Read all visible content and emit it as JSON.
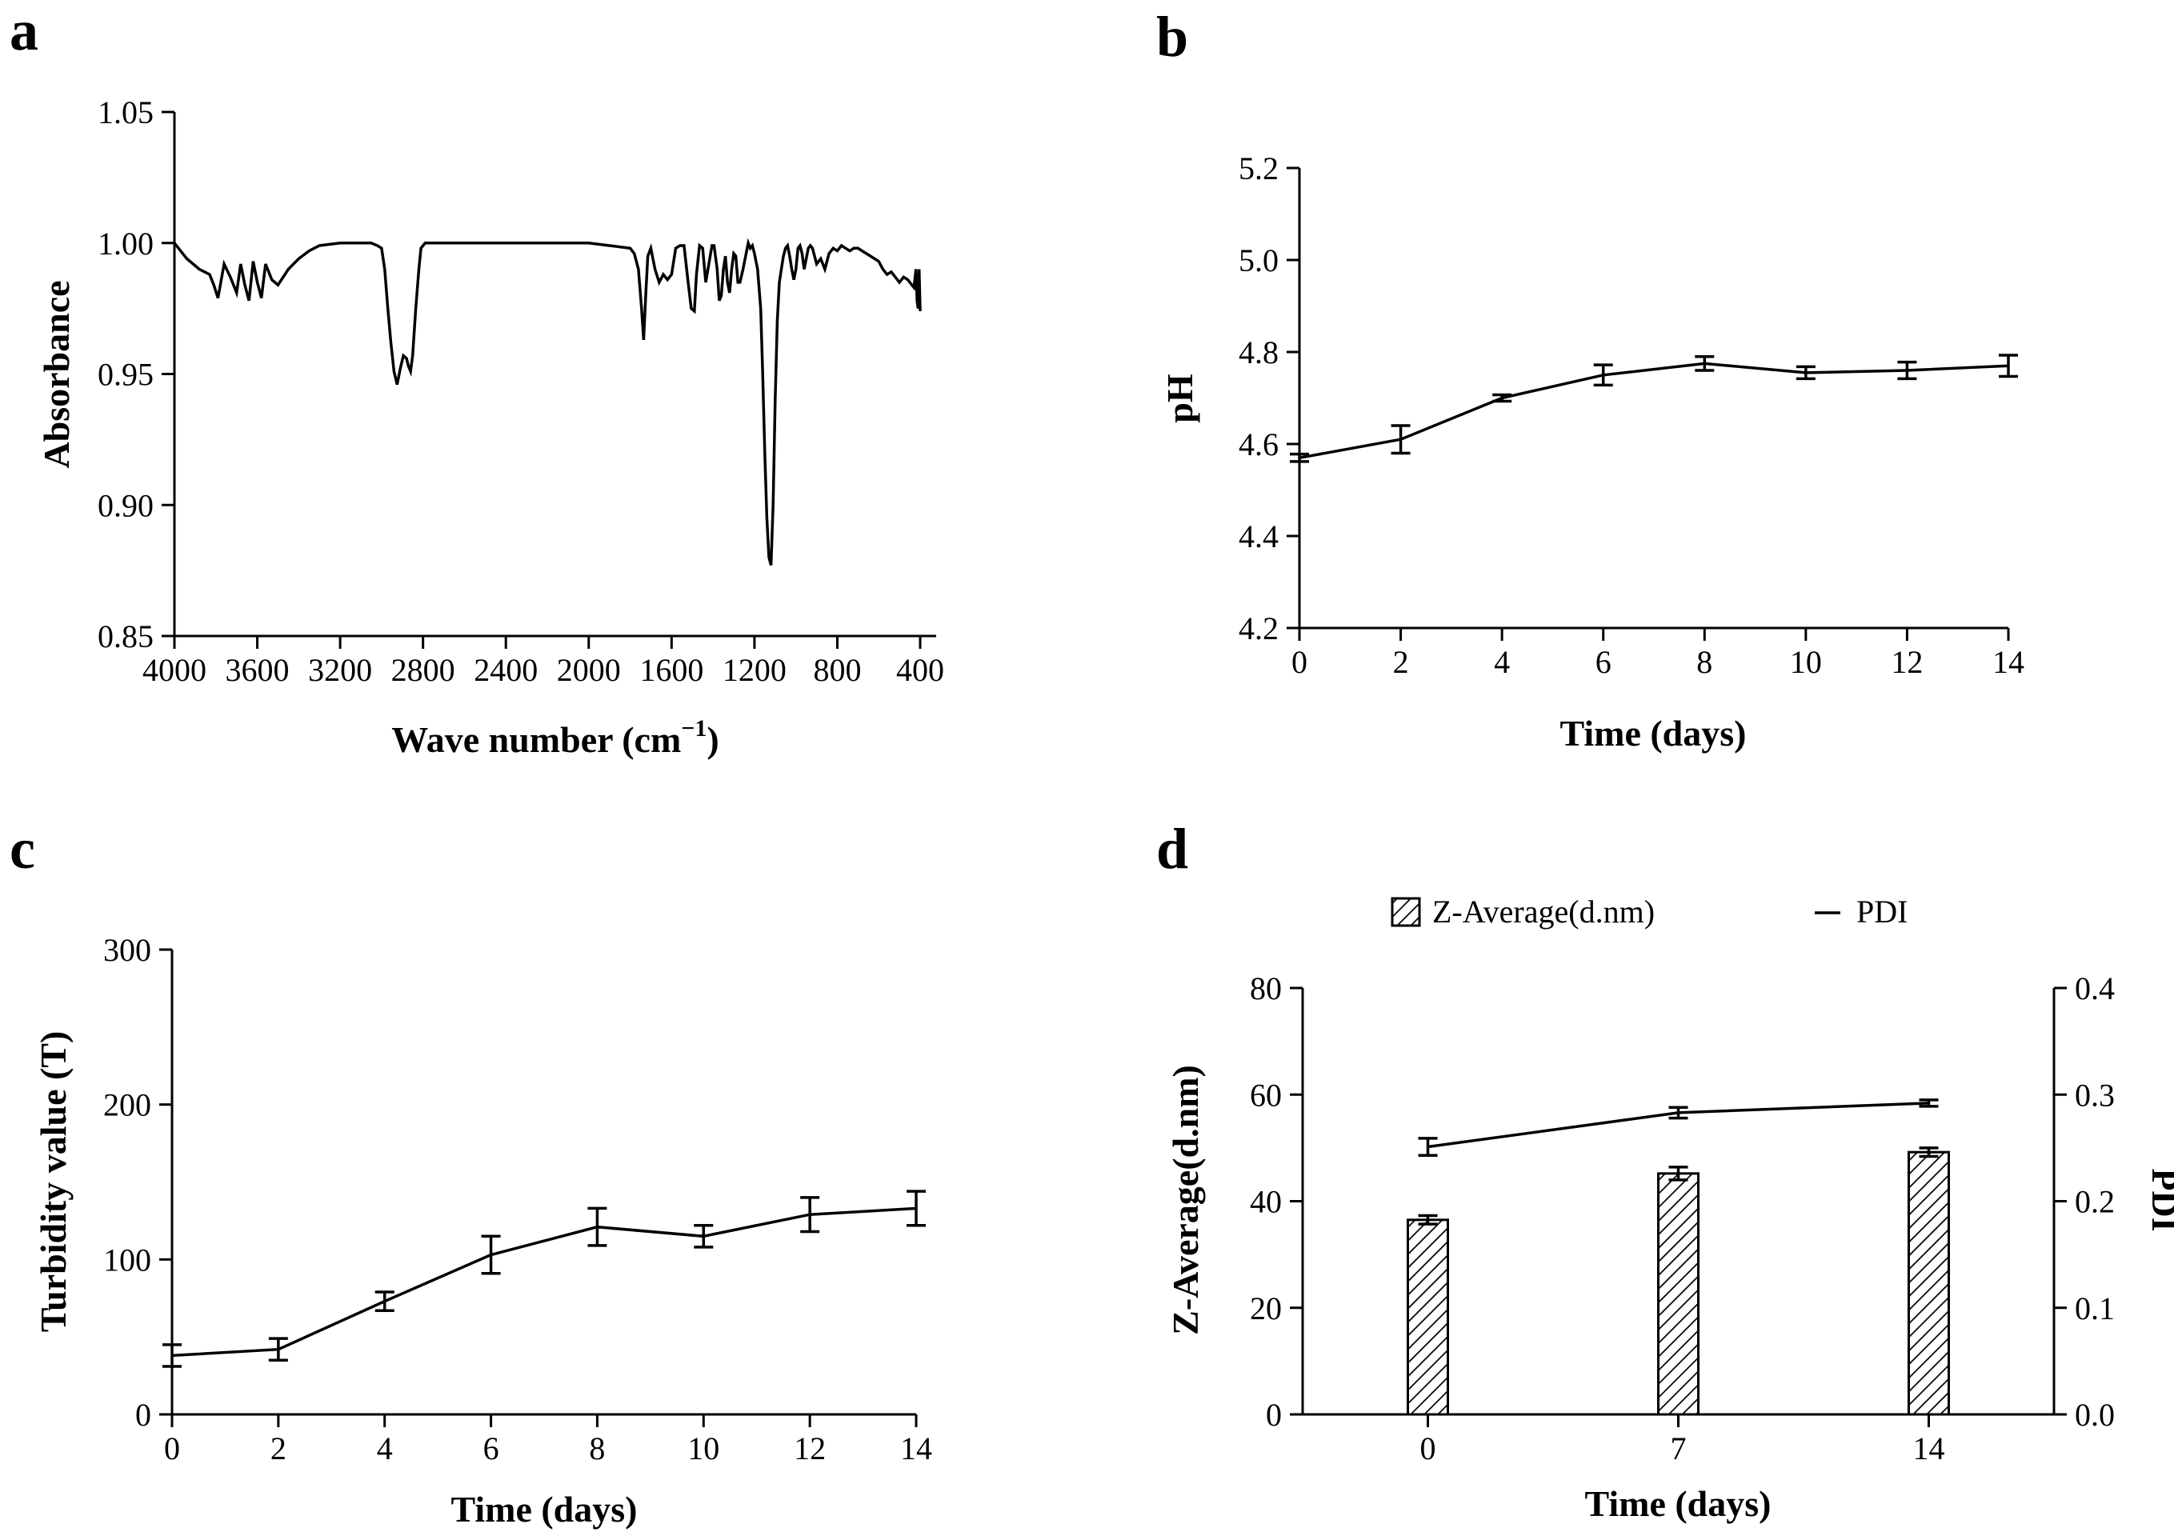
{
  "chart_data": [
    {
      "id": "a",
      "type": "line",
      "panel_label": "a",
      "xlabel": "Wave number (cm",
      "xlabel_sup": "−1",
      "xlabel_close": ")",
      "ylabel": "Absorbance",
      "xlim": [
        4000,
        400
      ],
      "ylim": [
        0.85,
        1.05
      ],
      "xticks": [
        4000,
        3600,
        3200,
        2800,
        2400,
        2000,
        1600,
        1200,
        800,
        400
      ],
      "yticks": [
        "0.85",
        "0.90",
        "0.95",
        "1.00",
        "1.05"
      ],
      "series": [
        {
          "x": [
            4000,
            3940,
            3880,
            3830,
            3810,
            3790,
            3760,
            3730,
            3700,
            3680,
            3660,
            3640,
            3620,
            3600,
            3580,
            3560,
            3530,
            3500,
            3450,
            3400,
            3350,
            3300,
            3200,
            3100,
            3050,
            3020,
            3000,
            2985,
            2970,
            2955,
            2940,
            2925,
            2910,
            2895,
            2880,
            2870,
            2860,
            2850,
            2835,
            2820,
            2810,
            2790,
            2760,
            2700,
            2600,
            2400,
            2200,
            2000,
            1900,
            1800,
            1780,
            1760,
            1745,
            1735,
            1725,
            1715,
            1700,
            1680,
            1660,
            1640,
            1620,
            1600,
            1580,
            1560,
            1540,
            1520,
            1505,
            1490,
            1480,
            1465,
            1450,
            1435,
            1420,
            1405,
            1395,
            1380,
            1370,
            1360,
            1350,
            1340,
            1330,
            1320,
            1310,
            1300,
            1290,
            1280,
            1270,
            1255,
            1240,
            1230,
            1220,
            1210,
            1200,
            1185,
            1170,
            1160,
            1150,
            1140,
            1130,
            1120,
            1110,
            1100,
            1090,
            1080,
            1070,
            1060,
            1050,
            1040,
            1030,
            1020,
            1010,
            1000,
            990,
            980,
            970,
            960,
            950,
            940,
            930,
            920,
            910,
            900,
            880,
            860,
            840,
            820,
            800,
            780,
            760,
            740,
            720,
            700,
            680,
            660,
            640,
            620,
            600,
            580,
            560,
            540,
            520,
            500,
            480,
            460,
            440,
            430,
            420,
            415,
            410,
            405,
            400
          ],
          "y": [
            1.0,
            0.994,
            0.99,
            0.988,
            0.984,
            0.979,
            0.992,
            0.987,
            0.981,
            0.992,
            0.984,
            0.978,
            0.993,
            0.985,
            0.979,
            0.992,
            0.986,
            0.984,
            0.99,
            0.994,
            0.997,
            0.999,
            1.0,
            1.0,
            1.0,
            0.999,
            0.998,
            0.99,
            0.975,
            0.962,
            0.951,
            0.946,
            0.952,
            0.957,
            0.956,
            0.953,
            0.951,
            0.957,
            0.975,
            0.99,
            0.998,
            1.0,
            1.0,
            1.0,
            1.0,
            1.0,
            1.0,
            1.0,
            0.999,
            0.998,
            0.996,
            0.99,
            0.975,
            0.963,
            0.98,
            0.995,
            0.998,
            0.99,
            0.985,
            0.988,
            0.986,
            0.988,
            0.998,
            0.999,
            0.999,
            0.985,
            0.975,
            0.974,
            0.988,
            0.999,
            0.998,
            0.985,
            0.992,
            0.999,
            0.999,
            0.99,
            0.978,
            0.98,
            0.99,
            0.995,
            0.985,
            0.981,
            0.99,
            0.996,
            0.995,
            0.985,
            0.985,
            0.99,
            0.996,
            1.0,
            0.998,
            0.999,
            0.996,
            0.99,
            0.975,
            0.95,
            0.92,
            0.895,
            0.88,
            0.877,
            0.9,
            0.94,
            0.97,
            0.985,
            0.99,
            0.995,
            0.998,
            0.999,
            0.995,
            0.99,
            0.986,
            0.99,
            0.998,
            0.999,
            0.996,
            0.99,
            0.994,
            0.998,
            0.999,
            0.998,
            0.995,
            0.992,
            0.994,
            0.99,
            0.996,
            0.998,
            0.997,
            0.999,
            0.998,
            0.997,
            0.998,
            0.998,
            0.997,
            0.996,
            0.995,
            0.994,
            0.993,
            0.99,
            0.988,
            0.989,
            0.987,
            0.985,
            0.987,
            0.986,
            0.984,
            0.983,
            0.99,
            0.978,
            0.975,
            0.99,
            0.974
          ]
        }
      ]
    },
    {
      "id": "b",
      "type": "line",
      "panel_label": "b",
      "xlabel": "Time (days)",
      "ylabel": "pH",
      "xlim": [
        0,
        14
      ],
      "ylim": [
        4.2,
        5.2
      ],
      "xticks": [
        0,
        2,
        4,
        6,
        8,
        10,
        12,
        14
      ],
      "yticks": [
        "4.2",
        "4.4",
        "4.6",
        "4.8",
        "5.0",
        "5.2"
      ],
      "series": [
        {
          "x": [
            0,
            2,
            4,
            6,
            8,
            10,
            12,
            14
          ],
          "y": [
            4.57,
            4.61,
            4.7,
            4.75,
            4.775,
            4.755,
            4.76,
            4.77
          ],
          "err": [
            0.008,
            0.03,
            0.007,
            0.022,
            0.015,
            0.013,
            0.018,
            0.023
          ]
        }
      ]
    },
    {
      "id": "c",
      "type": "line",
      "panel_label": "c",
      "xlabel": "Time (days)",
      "ylabel": "Turbidity value (T)",
      "xlim": [
        0,
        14
      ],
      "ylim": [
        0,
        300
      ],
      "xticks": [
        0,
        2,
        4,
        6,
        8,
        10,
        12,
        14
      ],
      "yticks": [
        "0",
        "100",
        "200",
        "300"
      ],
      "series": [
        {
          "x": [
            0,
            2,
            4,
            6,
            8,
            10,
            12,
            14
          ],
          "y": [
            38,
            42,
            73,
            103,
            121,
            115,
            129,
            133
          ],
          "err": [
            7,
            7,
            6,
            12,
            12,
            7,
            11,
            11
          ]
        }
      ]
    },
    {
      "id": "d",
      "type": "bar",
      "panel_label": "d",
      "xlabel": "Time (days)",
      "ylabel": "Z-Average(d.nm)",
      "y2label": "PDI",
      "categories": [
        "0",
        "7",
        "14"
      ],
      "ylim": [
        0,
        80
      ],
      "y2lim": [
        0.0,
        0.4
      ],
      "yticks": [
        "0",
        "20",
        "40",
        "60",
        "80"
      ],
      "y2ticks": [
        "0.0",
        "0.1",
        "0.2",
        "0.3",
        "0.4"
      ],
      "legend": {
        "position": "top",
        "entries": [
          "Z-Average(d.nm)",
          "PDI"
        ]
      },
      "series": [
        {
          "name": "Z-Average(d.nm)",
          "type": "bar",
          "axis": "left",
          "values": [
            36.5,
            45.2,
            49.2
          ],
          "err": [
            0.8,
            1.2,
            0.8
          ]
        },
        {
          "name": "PDI",
          "type": "line",
          "axis": "right",
          "values": [
            0.251,
            0.283,
            0.292
          ],
          "err": [
            0.008,
            0.005,
            0.003
          ]
        }
      ]
    }
  ]
}
